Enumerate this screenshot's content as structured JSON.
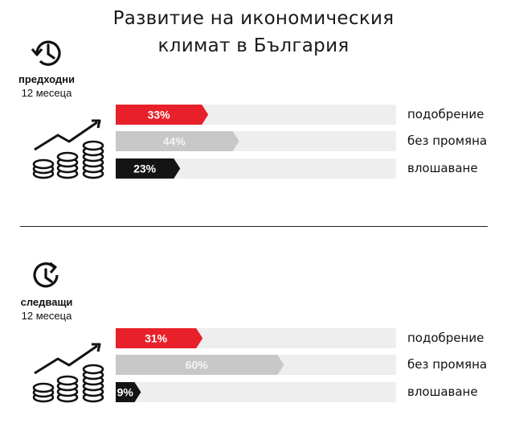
{
  "title_line1": "Развитие на икономическия",
  "title_line2": "климат в България",
  "colors": {
    "up": "#e8202a",
    "same": "#c8c8c8",
    "down": "#141414",
    "track": "#eeeeee"
  },
  "categories": [
    "подобрение",
    "без промяна",
    "влошаване"
  ],
  "sections": [
    {
      "period_line1": "предходни",
      "period_line2": "12 месеца",
      "labels": [
        "33%",
        "44%",
        "23%"
      ]
    },
    {
      "period_line1": "следващи",
      "period_line2": "12 месеца",
      "labels": [
        "31%",
        "60%",
        "9%"
      ]
    }
  ],
  "chart_data": [
    {
      "type": "bar",
      "title": "Развитие на икономическия климат в България",
      "subtitle": "предходни 12 месеца",
      "categories": [
        "подобрение",
        "без промяна",
        "влошаване"
      ],
      "values": [
        33,
        44,
        23
      ],
      "unit": "%",
      "xlim": [
        0,
        100
      ]
    },
    {
      "type": "bar",
      "title": "Развитие на икономическия климат в България",
      "subtitle": "следващи 12 месеца",
      "categories": [
        "подобрение",
        "без промяна",
        "влошаване"
      ],
      "values": [
        31,
        60,
        9
      ],
      "unit": "%",
      "xlim": [
        0,
        100
      ]
    }
  ]
}
